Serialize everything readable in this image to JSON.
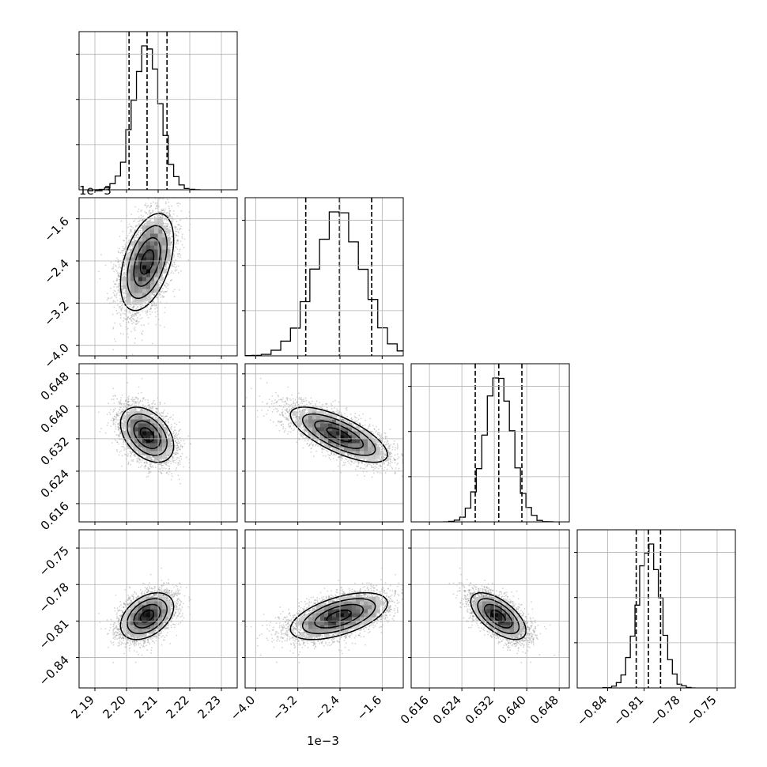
{
  "chart_data": {
    "type": "corner",
    "n_params": 4,
    "params": [
      {
        "range": [
          2.185,
          2.235
        ],
        "ticks": [
          2.19,
          2.2,
          2.21,
          2.22,
          2.23
        ],
        "tick_labels": [
          "2.19",
          "2.20",
          "2.21",
          "2.22",
          "2.23"
        ],
        "mean": 2.2065,
        "sd": 0.0042,
        "quantiles": [
          2.2008,
          2.2065,
          2.2128
        ],
        "offset_label": ""
      },
      {
        "range": [
          -4.2,
          -1.2
        ],
        "ticks": [
          -4.0,
          -3.2,
          -2.4,
          -1.6
        ],
        "tick_labels": [
          "−4.0",
          "−3.2",
          "−2.4",
          "−1.6"
        ],
        "mean": -2.42,
        "sd": 0.46,
        "quantiles": [
          -3.05,
          -2.41,
          -1.8
        ],
        "offset_label": "1e−3"
      },
      {
        "range": [
          0.6115,
          0.6505
        ],
        "ticks": [
          0.616,
          0.624,
          0.632,
          0.64,
          0.648
        ],
        "tick_labels": [
          "0.616",
          "0.624",
          "0.632",
          "0.640",
          "0.648"
        ],
        "mean": 0.633,
        "sd": 0.0034,
        "quantiles": [
          0.6273,
          0.6331,
          0.6388
        ],
        "offset_label": ""
      },
      {
        "range": [
          -0.865,
          -0.735
        ],
        "ticks": [
          -0.84,
          -0.81,
          -0.78,
          -0.75
        ],
        "tick_labels": [
          "−0.84",
          "−0.81",
          "−0.78",
          "−0.75"
        ],
        "mean": -0.806,
        "sd": 0.0096,
        "quantiles": [
          -0.8165,
          -0.8065,
          -0.7965
        ],
        "offset_label": ""
      }
    ],
    "correlations": [
      {
        "i": 1,
        "j": 0,
        "rho": 0.45
      },
      {
        "i": 2,
        "j": 0,
        "rho": -0.4
      },
      {
        "i": 2,
        "j": 1,
        "rho": -0.72
      },
      {
        "i": 3,
        "j": 0,
        "rho": 0.4
      },
      {
        "i": 3,
        "j": 1,
        "rho": 0.55
      },
      {
        "i": 3,
        "j": 2,
        "rho": -0.62
      }
    ],
    "histogram_bins": 20,
    "grid": true,
    "contour_levels": [
      0.118,
      0.393,
      0.675,
      0.865
    ],
    "line_color": "#000000",
    "density_color": "#000000",
    "point_color": "#808080"
  }
}
